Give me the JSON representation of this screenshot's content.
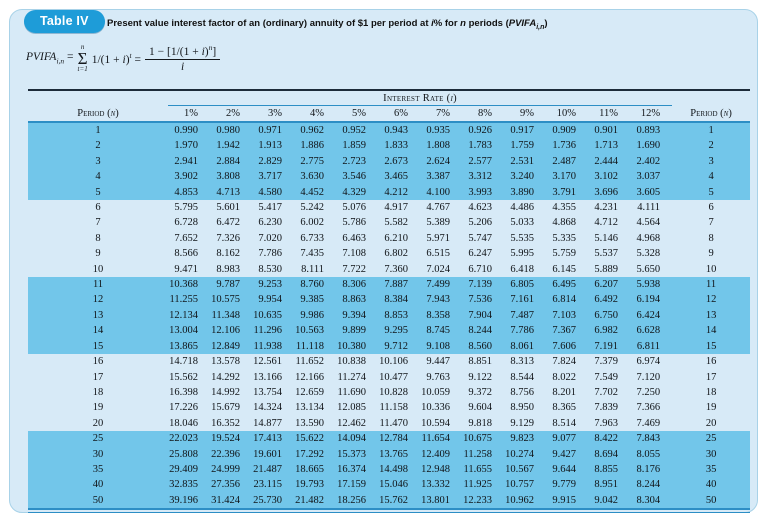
{
  "colors": {
    "card_bg": "#d7eaf7",
    "band_blue": "#72c6ea",
    "badge_blue": "#1e9cd8",
    "rule_blue": "#2d8ec5",
    "rule_dark": "#1c2b3a"
  },
  "header": {
    "badge": "Table IV",
    "title_segments": [
      {
        "text": "Present value interest factor of an (ordinary) annuity of $1 per period at "
      },
      {
        "text": "i",
        "italic": true
      },
      {
        "text": "% for "
      },
      {
        "text": "n",
        "italic": true
      },
      {
        "text": " periods ("
      },
      {
        "text": "PVIFA",
        "italic": true
      },
      {
        "text": "i,n",
        "sub": true,
        "italic": true
      },
      {
        "text": ")"
      }
    ]
  },
  "formula": {
    "lhs_segments": [
      {
        "text": "PVIFA",
        "italic": true
      },
      {
        "text": "i,n",
        "sub": true,
        "italic": true
      },
      {
        "text": " = "
      }
    ],
    "sum_upper": "n",
    "sigma": "Σ",
    "sum_lower": "t=1",
    "body_segments": [
      {
        "text": "1/(1 + "
      },
      {
        "text": "i",
        "italic": true
      },
      {
        "text": ")"
      },
      {
        "text": "t",
        "sup": true,
        "italic": true
      },
      {
        "text": " = "
      }
    ],
    "frac_num_segments": [
      {
        "text": "1 − [1/(1 + "
      },
      {
        "text": "i",
        "italic": true
      },
      {
        "text": ")"
      },
      {
        "text": "n",
        "sup": true,
        "italic": true
      },
      {
        "text": "]"
      }
    ],
    "frac_den": "i"
  },
  "table": {
    "interest_rate_segments": [
      {
        "text": "Interest Rate ("
      },
      {
        "text": "i",
        "italic": true
      },
      {
        "text": ")"
      }
    ],
    "period_label_segments": [
      {
        "text": "Period ("
      },
      {
        "text": "n",
        "italic": true
      },
      {
        "text": ")"
      }
    ],
    "rate_columns": [
      "1%",
      "2%",
      "3%",
      "4%",
      "5%",
      "6%",
      "7%",
      "8%",
      "9%",
      "10%",
      "11%",
      "12%"
    ],
    "rows": [
      {
        "n": "1",
        "values": [
          "0.990",
          "0.980",
          "0.971",
          "0.962",
          "0.952",
          "0.943",
          "0.935",
          "0.926",
          "0.917",
          "0.909",
          "0.901",
          "0.893"
        ]
      },
      {
        "n": "2",
        "values": [
          "1.970",
          "1.942",
          "1.913",
          "1.886",
          "1.859",
          "1.833",
          "1.808",
          "1.783",
          "1.759",
          "1.736",
          "1.713",
          "1.690"
        ]
      },
      {
        "n": "3",
        "values": [
          "2.941",
          "2.884",
          "2.829",
          "2.775",
          "2.723",
          "2.673",
          "2.624",
          "2.577",
          "2.531",
          "2.487",
          "2.444",
          "2.402"
        ]
      },
      {
        "n": "4",
        "values": [
          "3.902",
          "3.808",
          "3.717",
          "3.630",
          "3.546",
          "3.465",
          "3.387",
          "3.312",
          "3.240",
          "3.170",
          "3.102",
          "3.037"
        ]
      },
      {
        "n": "5",
        "values": [
          "4.853",
          "4.713",
          "4.580",
          "4.452",
          "4.329",
          "4.212",
          "4.100",
          "3.993",
          "3.890",
          "3.791",
          "3.696",
          "3.605"
        ]
      },
      {
        "n": "6",
        "values": [
          "5.795",
          "5.601",
          "5.417",
          "5.242",
          "5.076",
          "4.917",
          "4.767",
          "4.623",
          "4.486",
          "4.355",
          "4.231",
          "4.111"
        ]
      },
      {
        "n": "7",
        "values": [
          "6.728",
          "6.472",
          "6.230",
          "6.002",
          "5.786",
          "5.582",
          "5.389",
          "5.206",
          "5.033",
          "4.868",
          "4.712",
          "4.564"
        ]
      },
      {
        "n": "8",
        "values": [
          "7.652",
          "7.326",
          "7.020",
          "6.733",
          "6.463",
          "6.210",
          "5.971",
          "5.747",
          "5.535",
          "5.335",
          "5.146",
          "4.968"
        ]
      },
      {
        "n": "9",
        "values": [
          "8.566",
          "8.162",
          "7.786",
          "7.435",
          "7.108",
          "6.802",
          "6.515",
          "6.247",
          "5.995",
          "5.759",
          "5.537",
          "5.328"
        ]
      },
      {
        "n": "10",
        "values": [
          "9.471",
          "8.983",
          "8.530",
          "8.111",
          "7.722",
          "7.360",
          "7.024",
          "6.710",
          "6.418",
          "6.145",
          "5.889",
          "5.650"
        ]
      },
      {
        "n": "11",
        "values": [
          "10.368",
          "9.787",
          "9.253",
          "8.760",
          "8.306",
          "7.887",
          "7.499",
          "7.139",
          "6.805",
          "6.495",
          "6.207",
          "5.938"
        ]
      },
      {
        "n": "12",
        "values": [
          "11.255",
          "10.575",
          "9.954",
          "9.385",
          "8.863",
          "8.384",
          "7.943",
          "7.536",
          "7.161",
          "6.814",
          "6.492",
          "6.194"
        ]
      },
      {
        "n": "13",
        "values": [
          "12.134",
          "11.348",
          "10.635",
          "9.986",
          "9.394",
          "8.853",
          "8.358",
          "7.904",
          "7.487",
          "7.103",
          "6.750",
          "6.424"
        ]
      },
      {
        "n": "14",
        "values": [
          "13.004",
          "12.106",
          "11.296",
          "10.563",
          "9.899",
          "9.295",
          "8.745",
          "8.244",
          "7.786",
          "7.367",
          "6.982",
          "6.628"
        ]
      },
      {
        "n": "15",
        "values": [
          "13.865",
          "12.849",
          "11.938",
          "11.118",
          "10.380",
          "9.712",
          "9.108",
          "8.560",
          "8.061",
          "7.606",
          "7.191",
          "6.811"
        ]
      },
      {
        "n": "16",
        "values": [
          "14.718",
          "13.578",
          "12.561",
          "11.652",
          "10.838",
          "10.106",
          "9.447",
          "8.851",
          "8.313",
          "7.824",
          "7.379",
          "6.974"
        ]
      },
      {
        "n": "17",
        "values": [
          "15.562",
          "14.292",
          "13.166",
          "12.166",
          "11.274",
          "10.477",
          "9.763",
          "9.122",
          "8.544",
          "8.022",
          "7.549",
          "7.120"
        ]
      },
      {
        "n": "18",
        "values": [
          "16.398",
          "14.992",
          "13.754",
          "12.659",
          "11.690",
          "10.828",
          "10.059",
          "9.372",
          "8.756",
          "8.201",
          "7.702",
          "7.250"
        ]
      },
      {
        "n": "19",
        "values": [
          "17.226",
          "15.679",
          "14.324",
          "13.134",
          "12.085",
          "11.158",
          "10.336",
          "9.604",
          "8.950",
          "8.365",
          "7.839",
          "7.366"
        ]
      },
      {
        "n": "20",
        "values": [
          "18.046",
          "16.352",
          "14.877",
          "13.590",
          "12.462",
          "11.470",
          "10.594",
          "9.818",
          "9.129",
          "8.514",
          "7.963",
          "7.469"
        ]
      },
      {
        "n": "25",
        "values": [
          "22.023",
          "19.524",
          "17.413",
          "15.622",
          "14.094",
          "12.784",
          "11.654",
          "10.675",
          "9.823",
          "9.077",
          "8.422",
          "7.843"
        ]
      },
      {
        "n": "30",
        "values": [
          "25.808",
          "22.396",
          "19.601",
          "17.292",
          "15.373",
          "13.765",
          "12.409",
          "11.258",
          "10.274",
          "9.427",
          "8.694",
          "8.055"
        ]
      },
      {
        "n": "35",
        "values": [
          "29.409",
          "24.999",
          "21.487",
          "18.665",
          "16.374",
          "14.498",
          "12.948",
          "11.655",
          "10.567",
          "9.644",
          "8.855",
          "8.176"
        ]
      },
      {
        "n": "40",
        "values": [
          "32.835",
          "27.356",
          "23.115",
          "19.793",
          "17.159",
          "15.046",
          "13.332",
          "11.925",
          "10.757",
          "9.779",
          "8.951",
          "8.244"
        ]
      },
      {
        "n": "50",
        "values": [
          "39.196",
          "31.424",
          "25.730",
          "21.482",
          "18.256",
          "15.762",
          "13.801",
          "12.233",
          "10.962",
          "9.915",
          "9.042",
          "8.304"
        ]
      }
    ]
  }
}
